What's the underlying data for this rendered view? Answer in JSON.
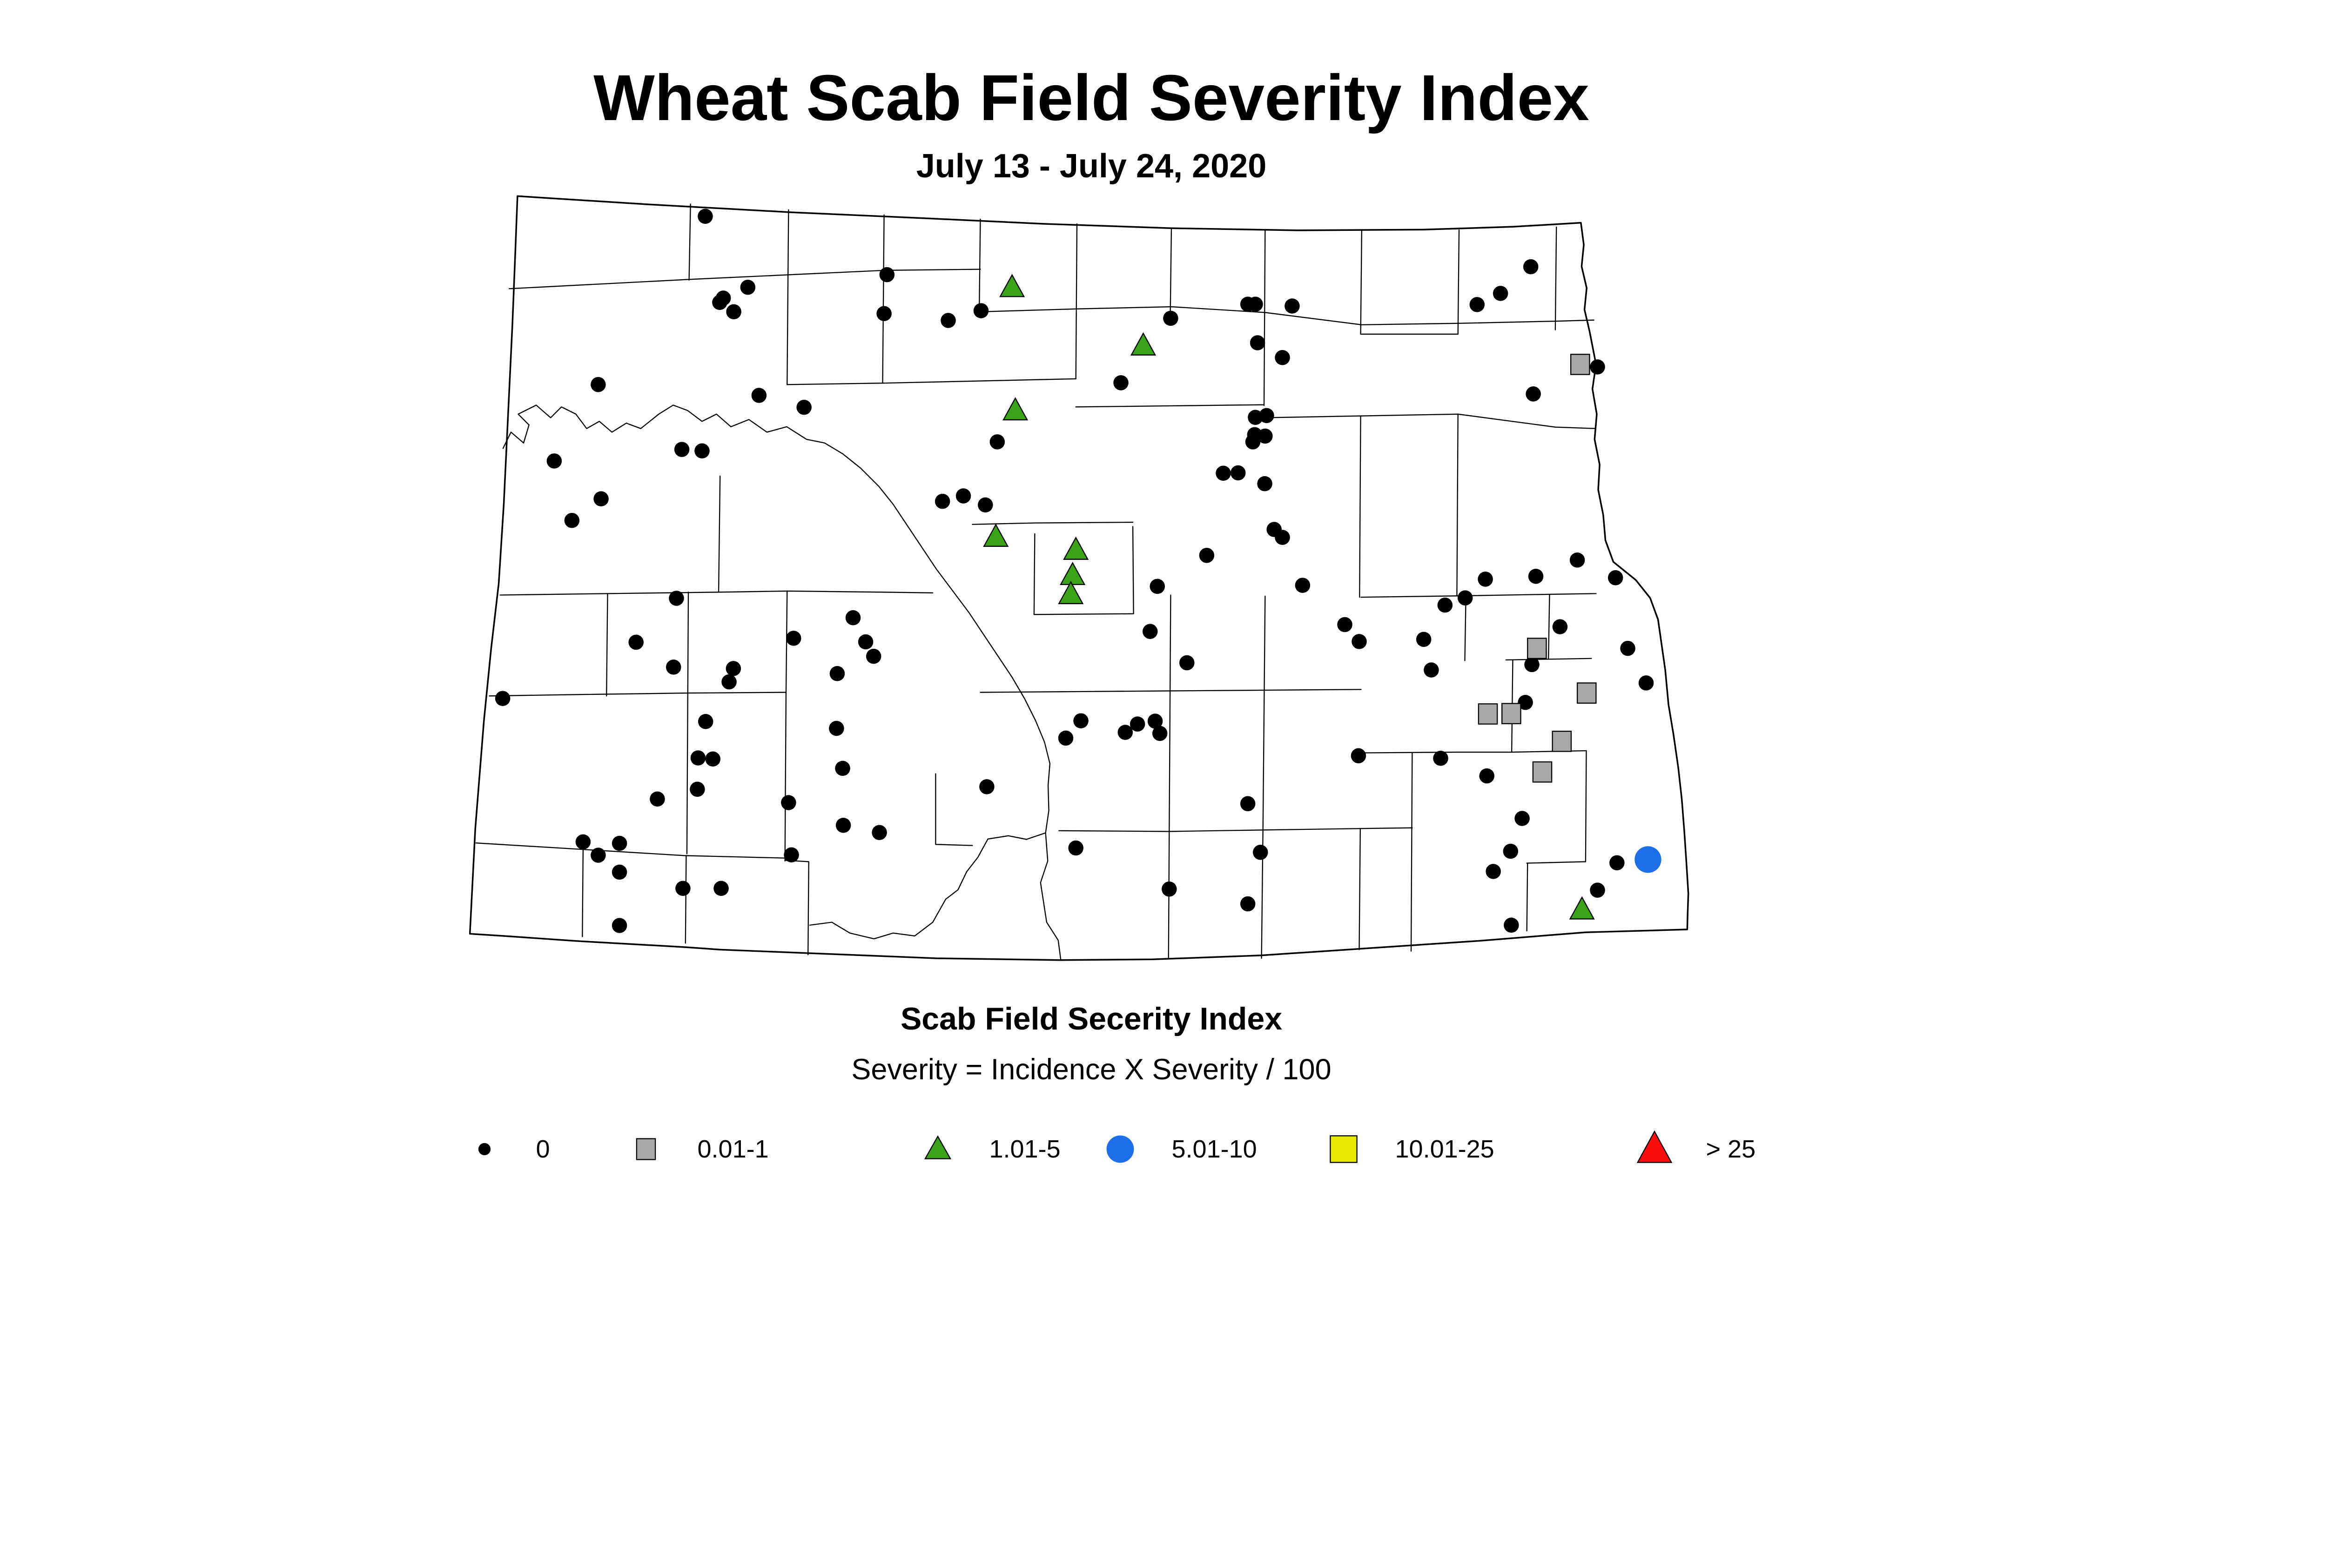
{
  "title": "Wheat Scab Field Severity Index",
  "subtitle": "July 13 - July 24, 2020",
  "legend": {
    "title": "Scab Field Secerity Index",
    "formula": "Severity = Incidence X Severity / 100",
    "items": [
      {
        "label": "0",
        "marker": "dot",
        "color": "#000000"
      },
      {
        "label": "0.01-1",
        "marker": "square",
        "color": "#a8a8a8"
      },
      {
        "label": "1.01-5",
        "marker": "triangle",
        "color": "#3aa317"
      },
      {
        "label": "5.01-10",
        "marker": "circle",
        "color": "#1c6fe8"
      },
      {
        "label": "10.01-25",
        "marker": "square",
        "color": "#e8e800"
      },
      {
        "label": "> 25",
        "marker": "triangle",
        "color": "#fb0d0d"
      }
    ]
  },
  "chart_data": {
    "type": "map",
    "region": "North Dakota counties",
    "index_name": "Scab Field Severity Index",
    "note": "point coordinates are in map pixel units of the source figure (viewBox 1300 520 3460 2170)",
    "series": [
      {
        "name": "0",
        "marker": "dot",
        "color": "#000000",
        "points": [
          [
            1959,
            601
          ],
          [
            2077,
            798
          ],
          [
            2009,
            828
          ],
          [
            1999,
            840
          ],
          [
            2038,
            866
          ],
          [
            2463,
            763
          ],
          [
            2455,
            871
          ],
          [
            1662,
            1068
          ],
          [
            2108,
            1098
          ],
          [
            2233,
            1131
          ],
          [
            1894,
            1248
          ],
          [
            1950,
            1252
          ],
          [
            1540,
            1280
          ],
          [
            1670,
            1385
          ],
          [
            1589,
            1445
          ],
          [
            2724,
            863
          ],
          [
            2633,
            890
          ],
          [
            3250,
            884
          ],
          [
            3464,
            845
          ],
          [
            3485,
            845
          ],
          [
            3587,
            850
          ],
          [
            3491,
            952
          ],
          [
            3560,
            993
          ],
          [
            3112,
            1063
          ],
          [
            2769,
            1227
          ],
          [
            3485,
            1159
          ],
          [
            3516,
            1154
          ],
          [
            3483,
            1207
          ],
          [
            3478,
            1227
          ],
          [
            3512,
            1211
          ],
          [
            3396,
            1314
          ],
          [
            3437,
            1313
          ],
          [
            3511,
            1343
          ],
          [
            2617,
            1392
          ],
          [
            2675,
            1377
          ],
          [
            2736,
            1402
          ],
          [
            3350,
            1542
          ],
          [
            3537,
            1470
          ],
          [
            3560,
            1492
          ],
          [
            3213,
            1628
          ],
          [
            3616,
            1625
          ],
          [
            4249,
            741
          ],
          [
            4165,
            815
          ],
          [
            4100,
            846
          ],
          [
            4434,
            1019
          ],
          [
            4256,
            1094
          ],
          [
            3193,
            1753
          ],
          [
            3295,
            1840
          ],
          [
            3733,
            1734
          ],
          [
            3773,
            1781
          ],
          [
            3001,
            2001
          ],
          [
            2959,
            2049
          ],
          [
            3158,
            2010
          ],
          [
            3207,
            2002
          ],
          [
            3220,
            2036
          ],
          [
            3124,
            2033
          ],
          [
            3771,
            2098
          ],
          [
            2740,
            2184
          ],
          [
            3464,
            2231
          ],
          [
            2987,
            2354
          ],
          [
            3499,
            2366
          ],
          [
            3246,
            2468
          ],
          [
            3464,
            2509
          ],
          [
            1879,
            1661
          ],
          [
            1767,
            1783
          ],
          [
            1871,
            1852
          ],
          [
            2037,
            1856
          ],
          [
            2025,
            1893
          ],
          [
            2204,
            1772
          ],
          [
            2369,
            1715
          ],
          [
            2404,
            1782
          ],
          [
            2426,
            1822
          ],
          [
            2325,
            1870
          ],
          [
            1397,
            1939
          ],
          [
            1960,
            2003
          ],
          [
            2323,
            2022
          ],
          [
            1939,
            2104
          ],
          [
            1980,
            2107
          ],
          [
            2340,
            2133
          ],
          [
            1937,
            2191
          ],
          [
            1826,
            2218
          ],
          [
            2190,
            2228
          ],
          [
            2342,
            2291
          ],
          [
            2442,
            2311
          ],
          [
            1620,
            2337
          ],
          [
            1721,
            2341
          ],
          [
            1662,
            2374
          ],
          [
            1721,
            2421
          ],
          [
            2198,
            2373
          ],
          [
            1897,
            2466
          ],
          [
            2003,
            2466
          ],
          [
            1721,
            2569
          ],
          [
            4123,
            1608
          ],
          [
            4067,
            1660
          ],
          [
            4011,
            1680
          ],
          [
            3952,
            1775
          ],
          [
            4263,
            1600
          ],
          [
            4378,
            1555
          ],
          [
            4484,
            1604
          ],
          [
            4330,
            1740
          ],
          [
            4252,
            1845
          ],
          [
            4518,
            1800
          ],
          [
            3973,
            1860
          ],
          [
            4569,
            1896
          ],
          [
            4234,
            1950
          ],
          [
            3999,
            2105
          ],
          [
            4127,
            2154
          ],
          [
            4225,
            2272
          ],
          [
            4193,
            2363
          ],
          [
            4145,
            2419
          ],
          [
            4488,
            2395
          ],
          [
            4434,
            2471
          ],
          [
            4195,
            2568
          ]
        ]
      },
      {
        "name": "0.01-1",
        "marker": "square",
        "color": "#a8a8a8",
        "points": [
          [
            4386,
            1012
          ],
          [
            4266,
            1800
          ],
          [
            4404,
            1924
          ],
          [
            4130,
            1982
          ],
          [
            4195,
            1981
          ],
          [
            4335,
            2058
          ],
          [
            4281,
            2143
          ]
        ]
      },
      {
        "name": "1.01-5",
        "marker": "triangle",
        "color": "#3aa317",
        "points": [
          [
            2810,
            798
          ],
          [
            3174,
            960
          ],
          [
            2819,
            1140
          ],
          [
            2765,
            1491
          ],
          [
            2987,
            1527
          ],
          [
            2978,
            1597
          ],
          [
            2973,
            1650
          ],
          [
            4391,
            2525
          ]
        ]
      },
      {
        "name": "5.01-10",
        "marker": "circle",
        "color": "#1c6fe8",
        "points": [
          [
            4574,
            2386
          ]
        ]
      },
      {
        "name": "10.01-25",
        "marker": "square",
        "color": "#e8e800",
        "points": []
      },
      {
        "name": "> 25",
        "marker": "triangle",
        "color": "#fb0d0d",
        "points": []
      }
    ]
  }
}
